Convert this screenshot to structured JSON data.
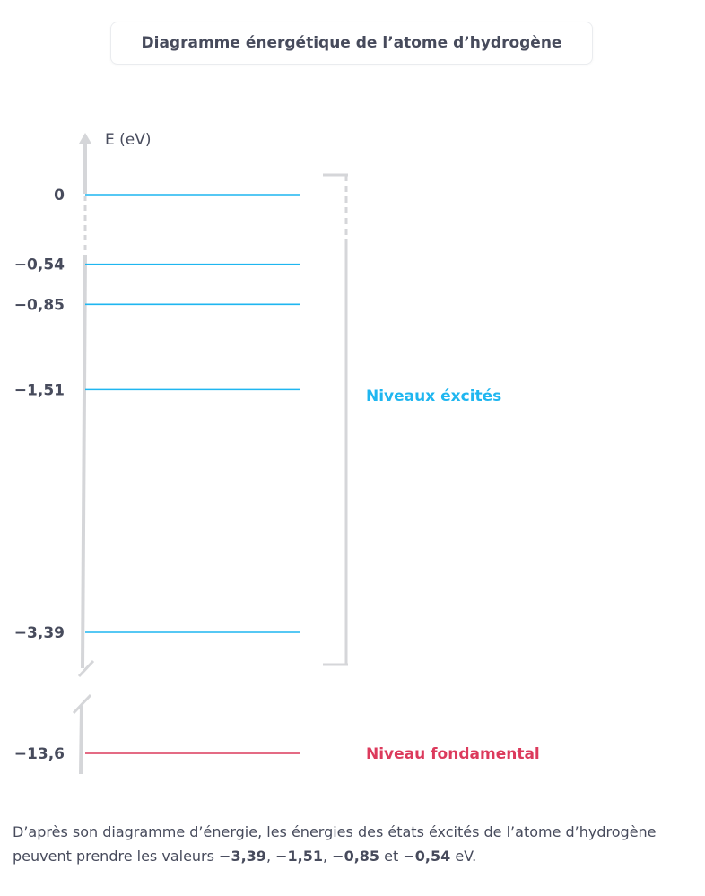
{
  "title": "Diagramme énergétique de l’atome d’hydrogène",
  "chart_data": {
    "type": "energy-level-diagram",
    "ylabel": "E (eV)",
    "levels": [
      {
        "label": "0",
        "value": 0,
        "kind": "excited"
      },
      {
        "label": "−0,54",
        "value": -0.54,
        "kind": "excited"
      },
      {
        "label": "−0,85",
        "value": -0.85,
        "kind": "excited"
      },
      {
        "label": "−1,51",
        "value": -1.51,
        "kind": "excited"
      },
      {
        "label": "−3,39",
        "value": -3.39,
        "kind": "excited"
      },
      {
        "label": "−13,6",
        "value": -13.6,
        "kind": "ground"
      }
    ],
    "excited_label": "Niveaux éxcités",
    "ground_label": "Niveau fondamental",
    "axis_break": true
  },
  "colors": {
    "excited": "#1fb6f0",
    "ground": "#dc3a5c",
    "axis": "#d5d6d9",
    "text": "#474b5c"
  },
  "caption": {
    "part1": "D’après son diagramme d’énergie, les énergies des états éxcités de l’atome d’hydrogène peuvent prendre les valeurs ",
    "v1": "−3,39",
    "sep1": ", ",
    "v2": "−1,51",
    "sep2": ", ",
    "v3": "−0,85",
    "sep3": " et ",
    "v4": "−0,54",
    "part2": " eV."
  }
}
